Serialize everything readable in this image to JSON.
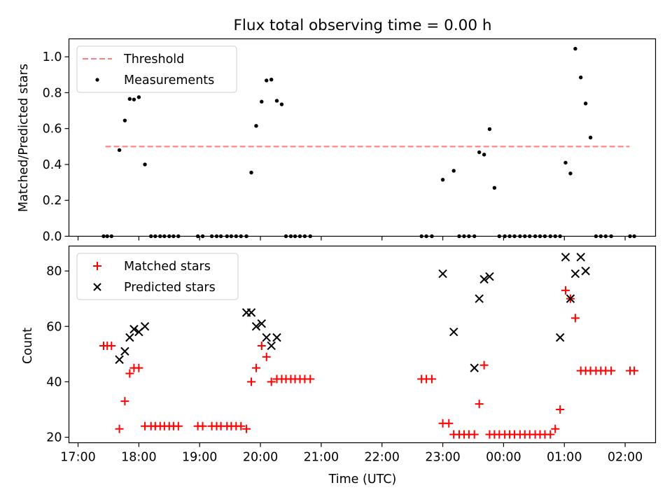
{
  "chart_data": [
    {
      "type": "scatter",
      "title": "Flux total observing time = 0.00 h",
      "xlabel": "",
      "ylabel": "Matched/Predicted stars",
      "xlim": [
        -0.15,
        9.5
      ],
      "ylim": [
        0.0,
        1.1
      ],
      "yticks": [
        0.0,
        0.2,
        0.4,
        0.6,
        0.8,
        1.0
      ],
      "ytick_labels": [
        "0.0",
        "0.2",
        "0.4",
        "0.6",
        "0.8",
        "1.0"
      ],
      "xticks": [
        0,
        1,
        2,
        3,
        4,
        5,
        6,
        7,
        8,
        9
      ],
      "xtick_labels": [
        "",
        "",
        "",
        "",
        "",
        "",
        "",
        "",
        "",
        ""
      ],
      "legend_position": "top-left",
      "threshold": {
        "name": "Threshold",
        "value": 0.5,
        "x_start": 0.45,
        "x_end": 9.07,
        "color": "#ff8080"
      },
      "series": [
        {
          "name": "Measurements",
          "color": "#000000",
          "marker": "dot",
          "x": [
            0.42,
            0.48,
            0.55,
            0.68,
            0.77,
            0.85,
            0.92,
            1.0,
            1.1,
            1.2,
            1.27,
            1.35,
            1.42,
            1.5,
            1.57,
            1.65,
            1.97,
            2.05,
            2.2,
            2.28,
            2.35,
            2.45,
            2.52,
            2.6,
            2.68,
            2.77,
            2.85,
            2.93,
            3.02,
            3.1,
            3.18,
            3.27,
            3.35,
            3.42,
            3.5,
            3.57,
            3.65,
            3.73,
            3.82,
            5.65,
            5.73,
            5.82,
            6.0,
            6.18,
            6.27,
            6.35,
            6.43,
            6.52,
            6.6,
            6.68,
            6.77,
            6.85,
            6.93,
            7.02,
            7.1,
            7.18,
            7.27,
            7.35,
            7.43,
            7.52,
            7.6,
            7.68,
            7.77,
            7.85,
            7.93,
            8.02,
            8.1,
            8.18,
            8.27,
            8.35,
            8.43,
            8.52,
            8.6,
            8.68,
            8.77,
            9.08,
            9.15
          ],
          "y": [
            0,
            0,
            0,
            0.48,
            0.645,
            0.765,
            0.762,
            0.775,
            0.4,
            0,
            0,
            0,
            0,
            0,
            0,
            0,
            0,
            0,
            0,
            0,
            0,
            0,
            0,
            0,
            0,
            0,
            0.355,
            0.615,
            0.75,
            0.868,
            0.873,
            0.755,
            0.735,
            0,
            0,
            0,
            0,
            0,
            0,
            0,
            0,
            0,
            0.315,
            0.365,
            0,
            0,
            0,
            0,
            0.468,
            0.455,
            0.597,
            0.27,
            0,
            0,
            0,
            0,
            0,
            0,
            0,
            0,
            0,
            0,
            0,
            0,
            0,
            0.41,
            0.35,
            1.045,
            0.885,
            0.74,
            0.55,
            0,
            0,
            0,
            0,
            0,
            0
          ]
        }
      ]
    },
    {
      "type": "scatter",
      "title": "",
      "xlabel": "Time (UTC)",
      "ylabel": "Count",
      "xlim": [
        -0.15,
        9.5
      ],
      "ylim": [
        18,
        89
      ],
      "yticks": [
        20,
        40,
        60,
        80
      ],
      "ytick_labels": [
        "20",
        "40",
        "60",
        "80"
      ],
      "xticks": [
        0,
        1,
        2,
        3,
        4,
        5,
        6,
        7,
        8,
        9
      ],
      "xtick_labels": [
        "17:00",
        "18:00",
        "19:00",
        "20:00",
        "21:00",
        "22:00",
        "23:00",
        "00:00",
        "01:00",
        "02:00"
      ],
      "legend_position": "top-left",
      "series": [
        {
          "name": "Matched stars",
          "color": "#ff0000",
          "marker": "plus",
          "x": [
            0.42,
            0.48,
            0.55,
            0.68,
            0.77,
            0.85,
            0.92,
            1.0,
            1.1,
            1.2,
            1.27,
            1.35,
            1.42,
            1.5,
            1.57,
            1.65,
            1.97,
            2.05,
            2.2,
            2.28,
            2.35,
            2.45,
            2.52,
            2.6,
            2.68,
            2.77,
            2.85,
            2.93,
            3.02,
            3.1,
            3.18,
            3.27,
            3.35,
            3.42,
            3.5,
            3.57,
            3.65,
            3.73,
            3.82,
            5.65,
            5.73,
            5.82,
            6.0,
            6.1,
            6.18,
            6.27,
            6.35,
            6.43,
            6.52,
            6.6,
            6.68,
            6.77,
            6.85,
            6.93,
            7.02,
            7.1,
            7.18,
            7.27,
            7.35,
            7.43,
            7.52,
            7.6,
            7.68,
            7.77,
            7.85,
            7.93,
            8.02,
            8.1,
            8.18,
            8.27,
            8.35,
            8.43,
            8.52,
            8.6,
            8.68,
            8.77,
            9.08,
            9.15
          ],
          "y": [
            53,
            53,
            53,
            23,
            33,
            43,
            45,
            45,
            24,
            24,
            24,
            24,
            24,
            24,
            24,
            24,
            24,
            24,
            24,
            24,
            24,
            24,
            24,
            24,
            24,
            23,
            40,
            45,
            53,
            49,
            40,
            41,
            41,
            41,
            41,
            41,
            41,
            41,
            41,
            41,
            41,
            41,
            25,
            25,
            21,
            21,
            21,
            21,
            21,
            32,
            46,
            21,
            21,
            21,
            21,
            21,
            21,
            21,
            21,
            21,
            21,
            21,
            21,
            21,
            23,
            30,
            73,
            70,
            63,
            44,
            44,
            44,
            44,
            44,
            44,
            44,
            44,
            44
          ]
        },
        {
          "name": "Predicted stars",
          "color": "#000000",
          "marker": "x",
          "x": [
            0.68,
            0.77,
            0.85,
            0.92,
            1.0,
            1.1,
            2.77,
            2.85,
            2.93,
            3.02,
            3.1,
            3.18,
            3.27,
            6.0,
            6.18,
            6.52,
            6.6,
            6.68,
            6.77,
            7.93,
            8.02,
            8.1,
            8.18,
            8.27,
            8.35
          ],
          "y": [
            48,
            51,
            56,
            59,
            58,
            60,
            65,
            65,
            60,
            61,
            56,
            53,
            56,
            79,
            58,
            45,
            70,
            77,
            78,
            56,
            85,
            70,
            79,
            85,
            80
          ]
        }
      ]
    }
  ]
}
